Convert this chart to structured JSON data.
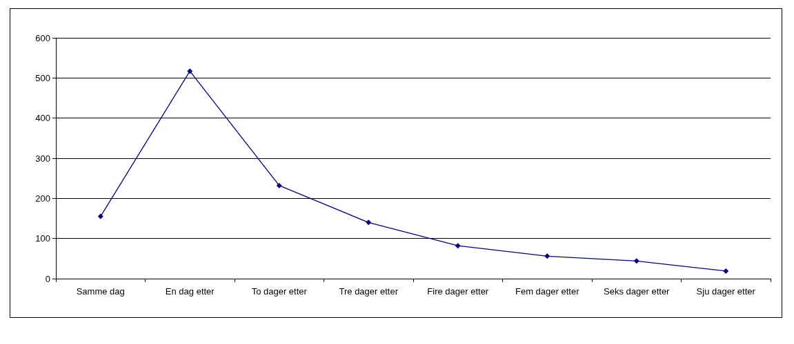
{
  "chart_data": {
    "type": "line",
    "categories": [
      "Samme dag",
      "En dag etter",
      "To dager etter",
      "Tre dager etter",
      "Fire dager etter",
      "Fem dager etter",
      "Seks dager etter",
      "Sju dager etter"
    ],
    "series": [
      {
        "color": "#000080",
        "values": [
          155,
          517,
          232,
          140,
          82,
          56,
          44,
          19
        ]
      }
    ],
    "ylim": [
      0,
      600
    ],
    "yticks": [
      0,
      100,
      200,
      300,
      400,
      500,
      600
    ],
    "grid": "y",
    "marker": "diamond",
    "line_style": "solid"
  }
}
